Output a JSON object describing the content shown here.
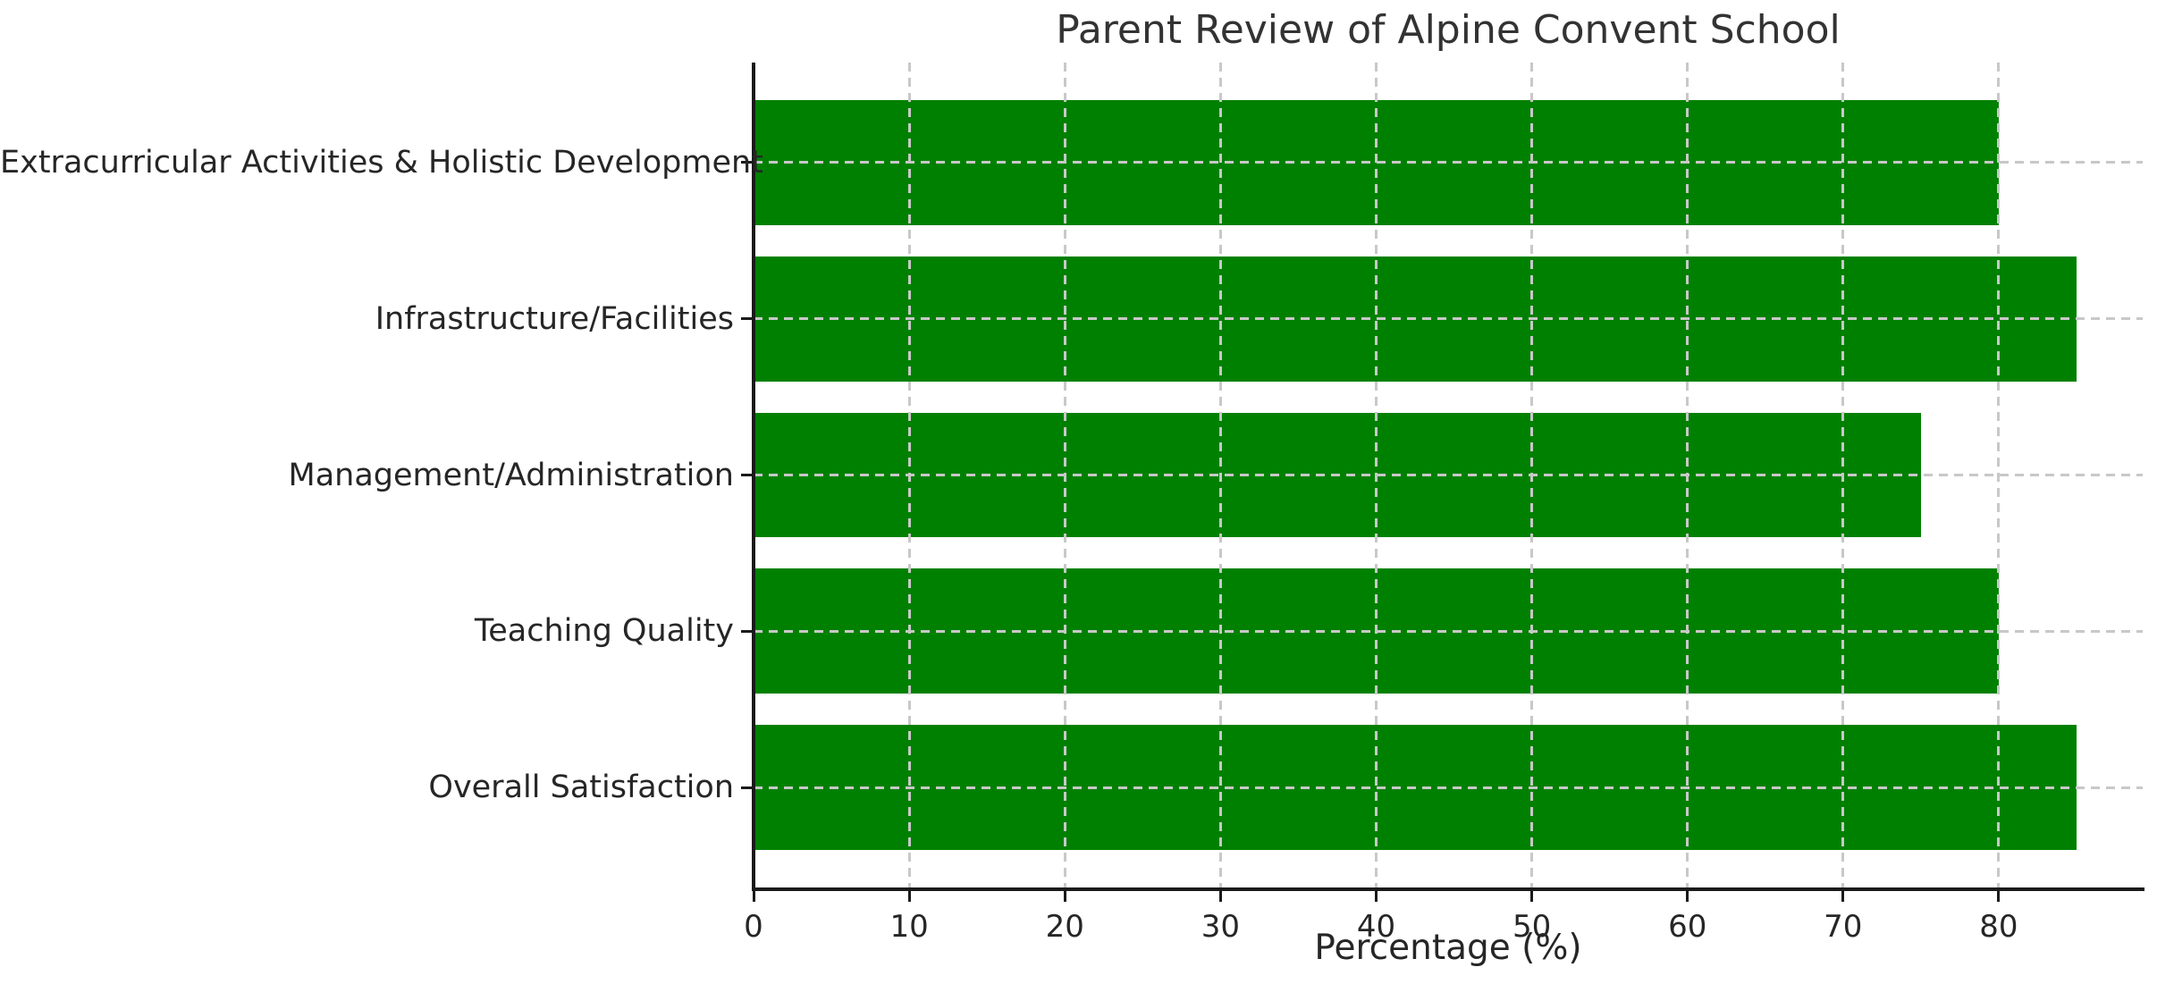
{
  "figure": {
    "background": "#ffffff"
  },
  "chart_data": {
    "type": "bar",
    "orientation": "horizontal",
    "title": "Parent Review of Alpine Convent School",
    "xlabel": "Percentage (%)",
    "ylabel": "",
    "categories": [
      "Extracurricular Activities & Holistic Development",
      "Infrastructure/Facilities",
      "Management/Administration",
      "Teaching Quality",
      "Overall Satisfaction"
    ],
    "values": [
      80,
      85,
      75,
      80,
      85
    ],
    "xticks": [
      0,
      10,
      20,
      30,
      40,
      50,
      60,
      70,
      80
    ],
    "xlim": [
      0,
      89.25
    ],
    "bar_color": "#008000",
    "grid": true,
    "grid_color": "#c8c8c8",
    "grid_style": "dashed",
    "grid_above_bars": true,
    "axis_color": "#1a1a1a",
    "text_color": "#262626",
    "legend": "none"
  }
}
